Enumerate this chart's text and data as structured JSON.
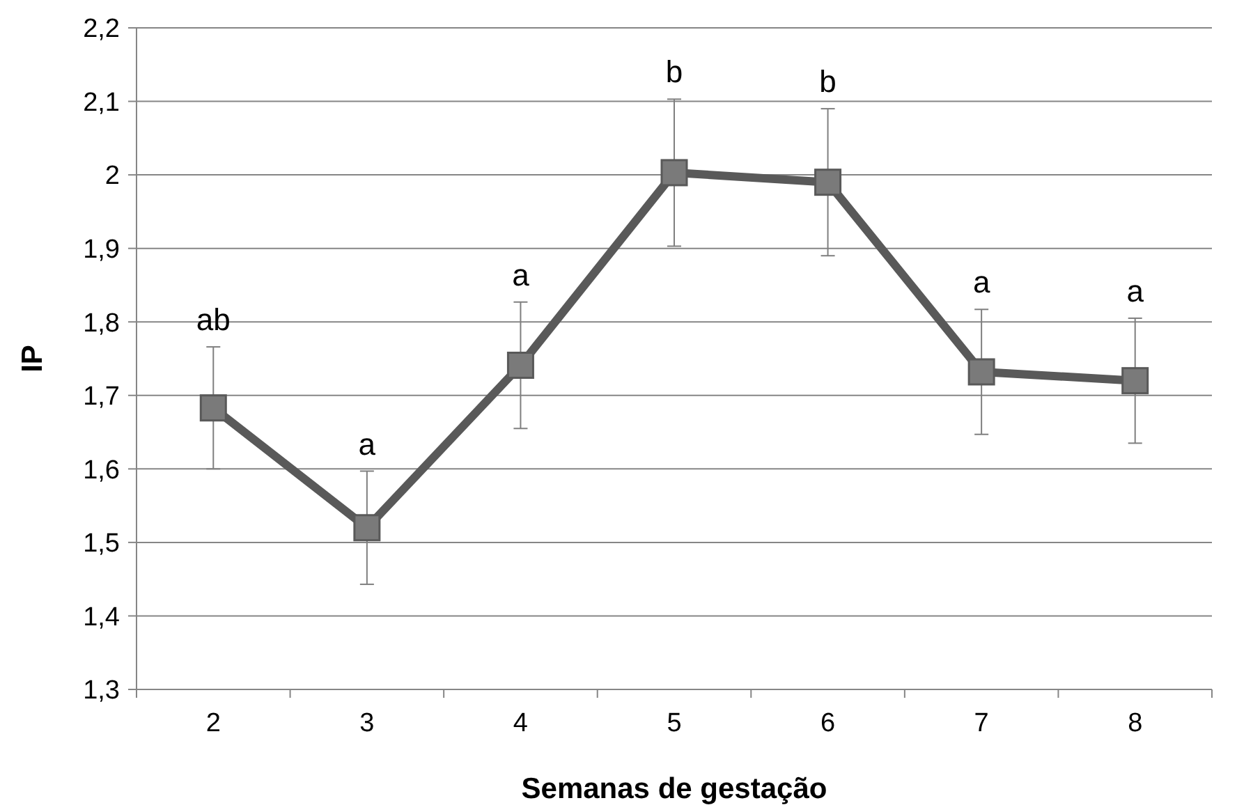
{
  "chart_data": {
    "type": "line",
    "xlabel": "Semanas de gestação",
    "ylabel": "IP",
    "categories": [
      "2",
      "3",
      "4",
      "5",
      "6",
      "7",
      "8"
    ],
    "series": [
      {
        "color": "#595959",
        "values": [
          1.683,
          1.52,
          1.741,
          2.003,
          1.99,
          1.732,
          1.72
        ],
        "errors": [
          0.083,
          0.077,
          0.086,
          0.1,
          0.1,
          0.085,
          0.085
        ]
      }
    ],
    "ylim": [
      1.3,
      2.2
    ],
    "yticks": [
      {
        "value": 1.3,
        "label": "1,3"
      },
      {
        "value": 1.4,
        "label": "1,4"
      },
      {
        "value": 1.5,
        "label": "1,5"
      },
      {
        "value": 1.6,
        "label": "1,6"
      },
      {
        "value": 1.7,
        "label": "1,7"
      },
      {
        "value": 1.8,
        "label": "1,8"
      },
      {
        "value": 1.9,
        "label": "1,9"
      },
      {
        "value": 2,
        "label": "2"
      },
      {
        "value": 2.1,
        "label": "2,1"
      },
      {
        "value": 2.2,
        "label": "2,2"
      }
    ],
    "grid": "y",
    "marker": "square",
    "line_style": "solid",
    "annotations": [
      {
        "text": "ab",
        "x": "2",
        "y": 1.766
      },
      {
        "text": "a",
        "x": "3",
        "y": 1.597
      },
      {
        "text": "a",
        "x": "4",
        "y": 1.827
      },
      {
        "text": "b",
        "x": "5",
        "y": 2.103
      },
      {
        "text": "b",
        "x": "6",
        "y": 2.09
      },
      {
        "text": "a",
        "x": "7",
        "y": 1.817
      },
      {
        "text": "a",
        "x": "8",
        "y": 1.805
      }
    ]
  }
}
